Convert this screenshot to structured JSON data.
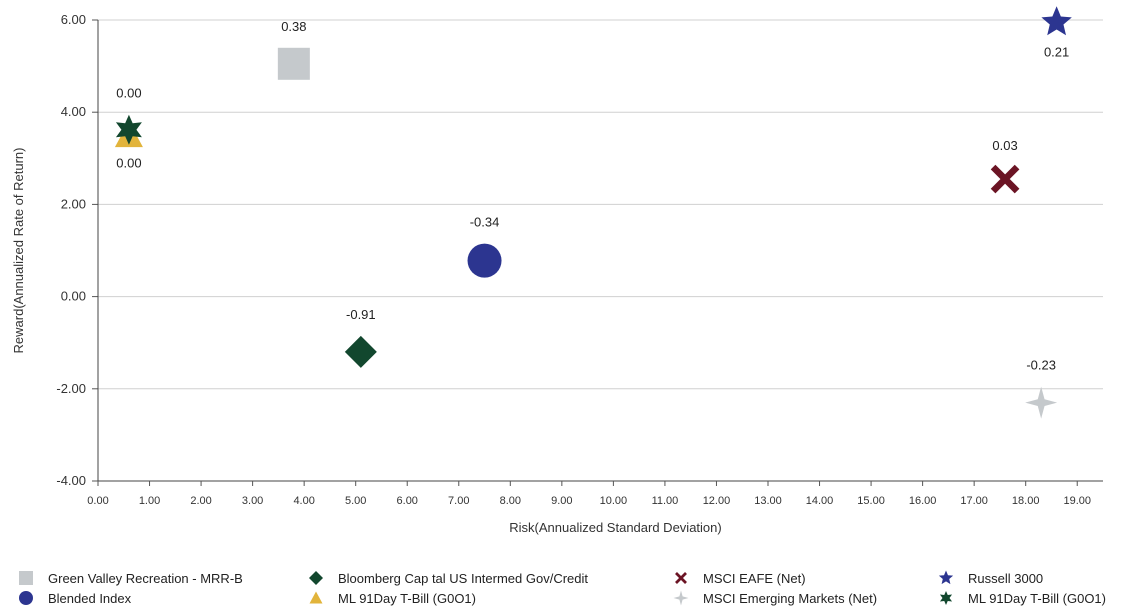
{
  "chart_data": {
    "type": "scatter",
    "title": "",
    "xlabel": "Risk(Annualized Standard Deviation)",
    "ylabel": "Reward(Annualized Rate of Return)",
    "xlim": [
      0,
      19.5
    ],
    "ylim": [
      -4,
      6.2
    ],
    "xticks": [
      "0.00",
      "1.00",
      "2.00",
      "3.00",
      "4.00",
      "5.00",
      "6.00",
      "7.00",
      "8.00",
      "9.00",
      "10.00",
      "11.00",
      "12.00",
      "13.00",
      "14.00",
      "15.00",
      "16.00",
      "17.00",
      "18.00",
      "19.00"
    ],
    "yticks": [
      "-4.00",
      "-2.00",
      "0.00",
      "2.00",
      "4.00",
      "6.00"
    ],
    "grid": "horizontal",
    "legend_position": "bottom",
    "series": [
      {
        "name": "Green Valley Recreation - MRR-B",
        "marker": "square",
        "color": "#c5c9cc",
        "x": 3.8,
        "y": 5.05,
        "label": "0.38",
        "label_pos": "above"
      },
      {
        "name": "Bloomberg Cap tal US Intermed Gov/Credit",
        "marker": "diamond",
        "color": "#12472e",
        "x": 5.1,
        "y": -1.2,
        "label": "-0.91",
        "label_pos": "above"
      },
      {
        "name": "MSCI EAFE (Net)",
        "marker": "x",
        "color": "#6b1424",
        "x": 17.6,
        "y": 2.55,
        "label": "0.03",
        "label_pos": "above"
      },
      {
        "name": "Russell 3000",
        "marker": "star5",
        "color": "#2c3590",
        "x": 18.6,
        "y": 5.95,
        "label": "0.21",
        "label_pos": "below"
      },
      {
        "name": "Blended Index",
        "marker": "circle",
        "color": "#2c3590",
        "x": 7.5,
        "y": 0.78,
        "label": "-0.34",
        "label_pos": "above"
      },
      {
        "name": "ML 91Day T-Bill (G0O1)",
        "marker": "triangle",
        "color": "#e2b43b",
        "x": 0.6,
        "y": 3.5,
        "label": "0.00",
        "label_pos": "below"
      },
      {
        "name": "MSCI Emerging Markets (Net)",
        "marker": "star4",
        "color": "#c5c9cc",
        "x": 18.3,
        "y": -2.3,
        "label": "-0.23",
        "label_pos": "above"
      },
      {
        "name": "ML 91Day T-Bill (G0O1)",
        "marker": "star6",
        "color": "#12472e",
        "x": 0.6,
        "y": 3.62,
        "label": "0.00",
        "label_pos": "above"
      }
    ]
  }
}
